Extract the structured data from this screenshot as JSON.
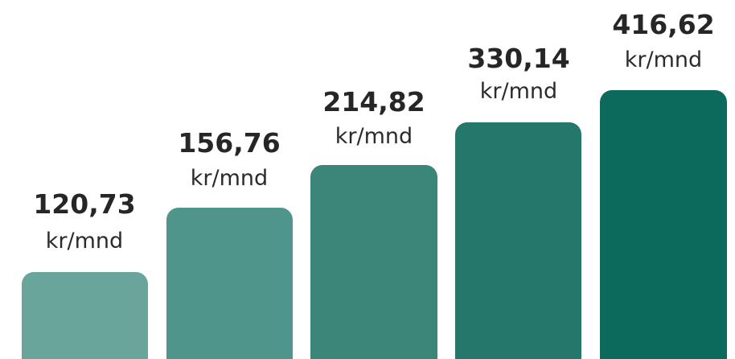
{
  "plans": [
    {
      "price": "120,73",
      "unit": "kr/mnd"
    },
    {
      "price": "156,76",
      "unit": "kr/mnd"
    },
    {
      "price": "214,82",
      "unit": "kr/mnd"
    },
    {
      "price": "330,14",
      "unit": "kr/mnd"
    },
    {
      "price": "416,62",
      "unit": "kr/mnd"
    }
  ]
}
